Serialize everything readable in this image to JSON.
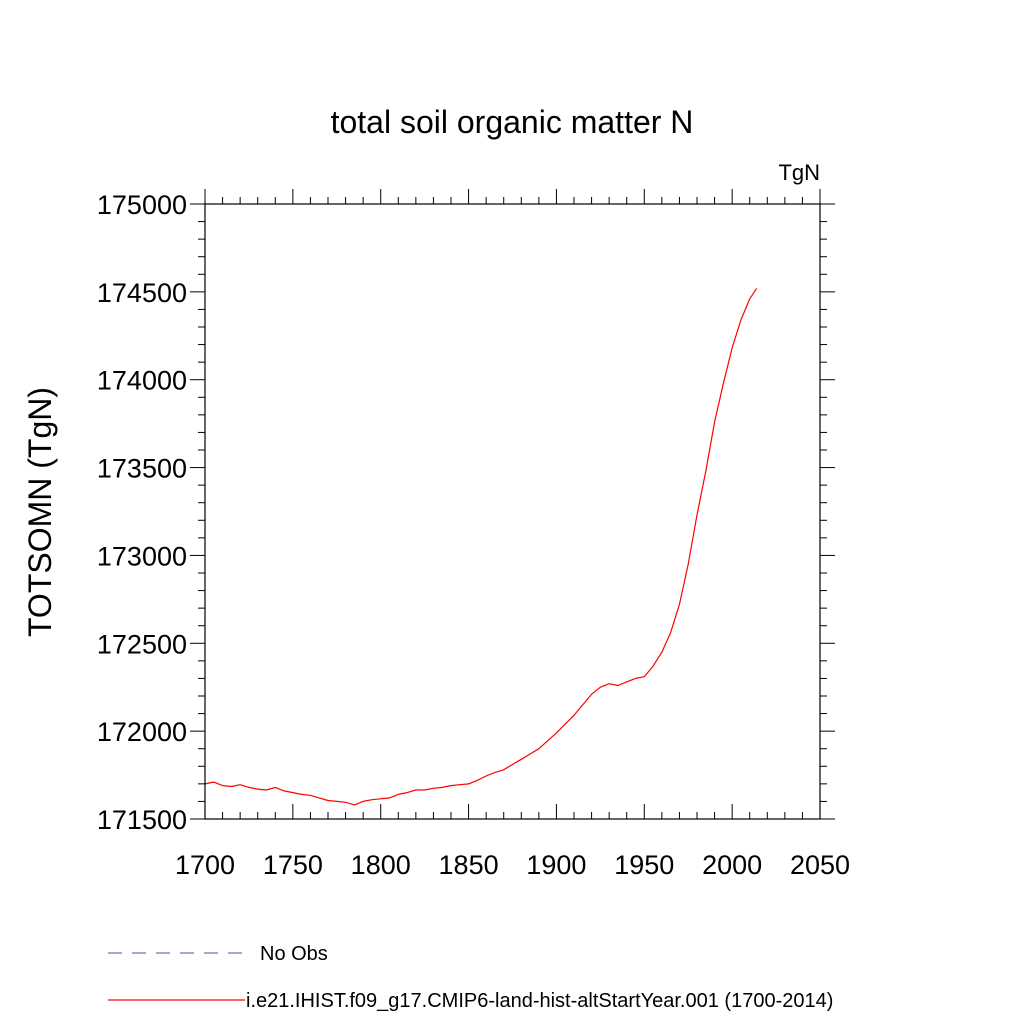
{
  "chart_data": {
    "type": "line",
    "title": "total soil organic matter N",
    "units_label": "TgN",
    "ylabel": "TOTSOMN  (TgN)",
    "xlabel": "",
    "xlim": [
      1700,
      2050
    ],
    "ylim": [
      171500,
      175000
    ],
    "xticks": [
      1700,
      1750,
      1800,
      1850,
      1900,
      1950,
      2000,
      2050
    ],
    "yticks": [
      171500,
      172000,
      172500,
      173000,
      173500,
      174000,
      174500,
      175000
    ],
    "grid": false,
    "legend_position": "bottom-left",
    "legend": [
      {
        "label": "No Obs",
        "color": "#7b6fb0",
        "style": "dashed"
      },
      {
        "label": "i.e21.IHIST.f09_g17.CMIP6-land-hist-altStartYear.001 (1700-2014)",
        "color": "#ff0000",
        "style": "solid"
      }
    ],
    "series": [
      {
        "name": "i.e21.IHIST.f09_g17.CMIP6-land-hist-altStartYear.001 (1700-2014)",
        "color": "#ff0000",
        "x": [
          1700,
          1705,
          1710,
          1715,
          1720,
          1725,
          1730,
          1735,
          1740,
          1745,
          1750,
          1755,
          1760,
          1765,
          1770,
          1775,
          1780,
          1785,
          1790,
          1795,
          1800,
          1805,
          1810,
          1815,
          1820,
          1825,
          1830,
          1835,
          1840,
          1845,
          1850,
          1855,
          1860,
          1865,
          1870,
          1875,
          1880,
          1885,
          1890,
          1895,
          1900,
          1905,
          1910,
          1915,
          1920,
          1925,
          1930,
          1935,
          1940,
          1945,
          1950,
          1955,
          1960,
          1965,
          1970,
          1975,
          1980,
          1985,
          1990,
          1995,
          2000,
          2005,
          2010,
          2014
        ],
        "y": [
          171700,
          171710,
          171690,
          171685,
          171695,
          171680,
          171670,
          171665,
          171680,
          171660,
          171650,
          171640,
          171635,
          171620,
          171605,
          171600,
          171595,
          171580,
          171600,
          171610,
          171615,
          171620,
          171640,
          171650,
          171665,
          171665,
          171675,
          171680,
          171690,
          171695,
          171700,
          171720,
          171745,
          171765,
          171780,
          171810,
          171840,
          171870,
          171900,
          171945,
          171990,
          172040,
          172090,
          172150,
          172210,
          172250,
          172270,
          172260,
          172280,
          172300,
          172310,
          172370,
          172450,
          172560,
          172720,
          172950,
          173230,
          173480,
          173760,
          173980,
          174180,
          174340,
          174460,
          174520
        ]
      }
    ]
  }
}
